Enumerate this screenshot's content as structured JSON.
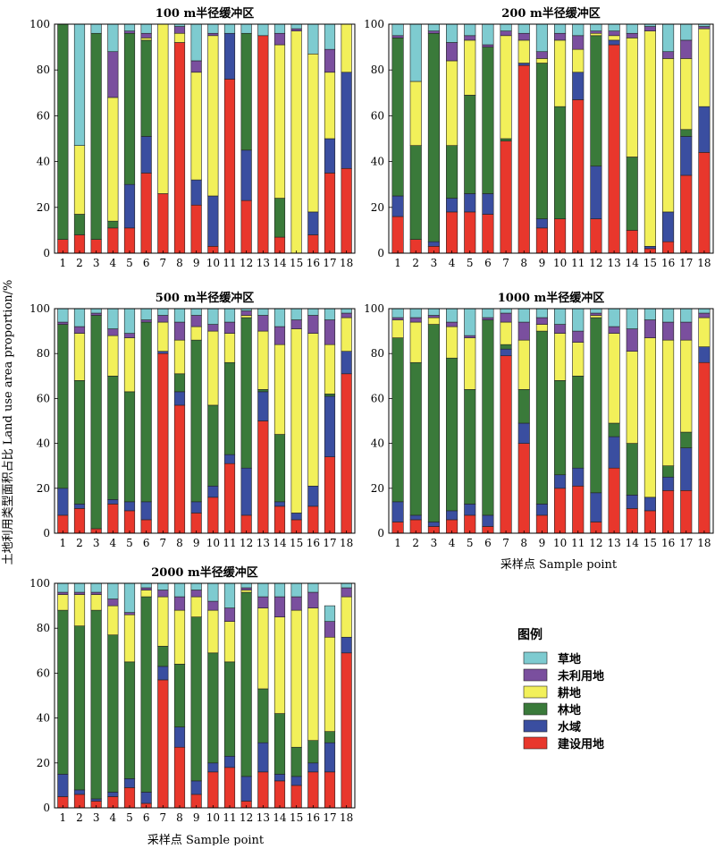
{
  "figure": {
    "ylabel": "土地利用类型面积占比 Land use area proportion/%",
    "xlabel": "采样点 Sample point",
    "legend_title": "图例",
    "colors": {
      "草地": "#7ecbd0",
      "未利用地": "#7a4f9e",
      "耕地": "#f2f05a",
      "林地": "#3a7a3a",
      "水域": "#3a4ea0",
      "建设用地": "#e8372c"
    }
  },
  "chart_data": [
    {
      "type": "bar",
      "stacked": true,
      "title": "100 m半径缓冲区",
      "categories": [
        "1",
        "2",
        "3",
        "4",
        "5",
        "6",
        "7",
        "8",
        "9",
        "10",
        "11",
        "12",
        "13",
        "14",
        "15",
        "16",
        "17",
        "18"
      ],
      "ylim": [
        0,
        100
      ],
      "yticks": [
        0,
        20,
        40,
        60,
        80,
        100
      ],
      "series": [
        {
          "name": "建设用地",
          "values": [
            6,
            8,
            6,
            11,
            11,
            35,
            26,
            92,
            21,
            3,
            76,
            23,
            95,
            7,
            0,
            8,
            35,
            37
          ]
        },
        {
          "name": "水域",
          "values": [
            0,
            0,
            0,
            0,
            19,
            16,
            0,
            0,
            11,
            22,
            20,
            22,
            0,
            0,
            0,
            10,
            15,
            42
          ]
        },
        {
          "name": "林地",
          "values": [
            94,
            9,
            90,
            3,
            66,
            42,
            0,
            0,
            0,
            0,
            0,
            51,
            0,
            17,
            0,
            0,
            0,
            0
          ]
        },
        {
          "name": "耕地",
          "values": [
            0,
            30,
            0,
            54,
            0,
            1,
            74,
            4,
            47,
            70,
            0,
            0,
            0,
            67,
            97,
            69,
            29,
            21
          ]
        },
        {
          "name": "未利用地",
          "values": [
            0,
            0,
            0,
            20,
            1,
            2,
            0,
            3,
            5,
            1,
            0,
            0,
            0,
            5,
            1,
            0,
            10,
            0
          ]
        },
        {
          "name": "草地",
          "values": [
            0,
            53,
            4,
            12,
            3,
            4,
            0,
            1,
            16,
            4,
            4,
            4,
            5,
            4,
            2,
            13,
            11,
            0
          ]
        }
      ]
    },
    {
      "type": "bar",
      "stacked": true,
      "title": "200 m半径缓冲区",
      "categories": [
        "1",
        "2",
        "3",
        "4",
        "5",
        "6",
        "7",
        "8",
        "9",
        "10",
        "11",
        "12",
        "13",
        "14",
        "15",
        "16",
        "17",
        "18"
      ],
      "ylim": [
        0,
        100
      ],
      "yticks": [
        0,
        20,
        40,
        60,
        80,
        100
      ],
      "series": [
        {
          "name": "建设用地",
          "values": [
            16,
            6,
            3,
            18,
            18,
            17,
            49,
            82,
            11,
            15,
            67,
            15,
            91,
            10,
            2,
            5,
            34,
            44
          ]
        },
        {
          "name": "水域",
          "values": [
            9,
            0,
            2,
            6,
            8,
            9,
            0,
            1,
            4,
            0,
            12,
            23,
            2,
            0,
            1,
            13,
            17,
            20
          ]
        },
        {
          "name": "林地",
          "values": [
            69,
            41,
            91,
            23,
            43,
            64,
            1,
            0,
            68,
            49,
            0,
            57,
            0,
            32,
            0,
            0,
            3,
            0
          ]
        },
        {
          "name": "耕地",
          "values": [
            0,
            28,
            0,
            37,
            24,
            0,
            45,
            10,
            2,
            29,
            10,
            1,
            2,
            52,
            94,
            67,
            31,
            34
          ]
        },
        {
          "name": "未利用地",
          "values": [
            1,
            0,
            1,
            8,
            2,
            1,
            2,
            3,
            3,
            3,
            6,
            1,
            2,
            2,
            2,
            3,
            8,
            1
          ]
        },
        {
          "name": "草地",
          "values": [
            5,
            25,
            3,
            8,
            5,
            9,
            3,
            4,
            12,
            4,
            5,
            3,
            3,
            4,
            1,
            12,
            7,
            1
          ]
        }
      ]
    },
    {
      "type": "bar",
      "stacked": true,
      "title": "500 m半径缓冲区",
      "categories": [
        "1",
        "2",
        "3",
        "4",
        "5",
        "6",
        "7",
        "8",
        "9",
        "10",
        "11",
        "12",
        "13",
        "14",
        "15",
        "16",
        "17",
        "18"
      ],
      "ylim": [
        0,
        100
      ],
      "yticks": [
        0,
        20,
        40,
        60,
        80,
        100
      ],
      "series": [
        {
          "name": "建设用地",
          "values": [
            8,
            11,
            2,
            13,
            10,
            6,
            80,
            57,
            9,
            16,
            31,
            8,
            50,
            12,
            6,
            12,
            34,
            71
          ]
        },
        {
          "name": "水域",
          "values": [
            12,
            2,
            0,
            2,
            4,
            8,
            1,
            6,
            5,
            5,
            4,
            21,
            13,
            2,
            3,
            9,
            27,
            10
          ]
        },
        {
          "name": "林地",
          "values": [
            73,
            55,
            95,
            55,
            49,
            80,
            0,
            8,
            72,
            36,
            41,
            67,
            1,
            30,
            0,
            0,
            1,
            0
          ]
        },
        {
          "name": "耕地",
          "values": [
            0,
            21,
            0,
            18,
            24,
            0,
            13,
            15,
            6,
            33,
            13,
            1,
            26,
            40,
            82,
            68,
            22,
            15
          ]
        },
        {
          "name": "未利用地",
          "values": [
            1,
            3,
            1,
            3,
            2,
            1,
            3,
            8,
            5,
            3,
            5,
            2,
            7,
            8,
            4,
            8,
            11,
            2
          ]
        },
        {
          "name": "草地",
          "values": [
            6,
            8,
            2,
            9,
            11,
            5,
            3,
            6,
            3,
            7,
            6,
            1,
            3,
            8,
            5,
            3,
            5,
            2
          ]
        }
      ]
    },
    {
      "type": "bar",
      "stacked": true,
      "title": "1000 m半径缓冲区",
      "categories": [
        "1",
        "2",
        "3",
        "4",
        "5",
        "6",
        "7",
        "8",
        "9",
        "10",
        "11",
        "12",
        "13",
        "14",
        "15",
        "16",
        "17",
        "18"
      ],
      "ylim": [
        0,
        100
      ],
      "yticks": [
        0,
        20,
        40,
        60,
        80,
        100
      ],
      "series": [
        {
          "name": "建设用地",
          "values": [
            5,
            6,
            3,
            6,
            8,
            3,
            79,
            40,
            8,
            20,
            21,
            5,
            29,
            11,
            10,
            19,
            19,
            76
          ]
        },
        {
          "name": "水域",
          "values": [
            9,
            2,
            2,
            4,
            5,
            5,
            3,
            9,
            5,
            6,
            8,
            13,
            14,
            6,
            6,
            6,
            19,
            7
          ]
        },
        {
          "name": "林地",
          "values": [
            73,
            68,
            88,
            68,
            51,
            87,
            2,
            15,
            77,
            42,
            41,
            78,
            6,
            23,
            0,
            5,
            7,
            0
          ]
        },
        {
          "name": "耕地",
          "values": [
            8,
            18,
            3,
            14,
            23,
            0,
            10,
            22,
            3,
            21,
            15,
            1,
            40,
            41,
            71,
            56,
            41,
            13
          ]
        },
        {
          "name": "未利用地",
          "values": [
            1,
            2,
            1,
            2,
            1,
            1,
            4,
            8,
            3,
            4,
            5,
            1,
            3,
            10,
            8,
            8,
            8,
            2
          ]
        },
        {
          "name": "草地",
          "values": [
            4,
            4,
            3,
            6,
            12,
            4,
            2,
            6,
            4,
            7,
            10,
            2,
            8,
            9,
            5,
            6,
            6,
            2
          ]
        }
      ]
    },
    {
      "type": "bar",
      "stacked": true,
      "title": "2000 m半径缓冲区",
      "categories": [
        "1",
        "2",
        "3",
        "4",
        "5",
        "6",
        "7",
        "8",
        "9",
        "10",
        "11",
        "12",
        "13",
        "14",
        "15",
        "16",
        "17",
        "18"
      ],
      "ylim": [
        0,
        100
      ],
      "yticks": [
        0,
        20,
        40,
        60,
        80,
        100
      ],
      "series": [
        {
          "name": "建设用地",
          "values": [
            5,
            6,
            3,
            5,
            9,
            2,
            57,
            27,
            6,
            16,
            18,
            3,
            16,
            12,
            10,
            16,
            16,
            69
          ]
        },
        {
          "name": "水域",
          "values": [
            10,
            2,
            1,
            2,
            4,
            5,
            6,
            9,
            6,
            4,
            5,
            11,
            13,
            3,
            4,
            4,
            13,
            7
          ]
        },
        {
          "name": "林地",
          "values": [
            73,
            73,
            84,
            70,
            52,
            87,
            9,
            28,
            73,
            49,
            42,
            82,
            24,
            27,
            13,
            10,
            5,
            0
          ]
        },
        {
          "name": "耕地",
          "values": [
            7,
            14,
            7,
            13,
            21,
            3,
            22,
            24,
            9,
            19,
            18,
            1,
            36,
            43,
            61,
            59,
            42,
            18
          ]
        },
        {
          "name": "未利用地",
          "values": [
            1,
            1,
            1,
            3,
            1,
            1,
            3,
            6,
            3,
            4,
            6,
            1,
            5,
            9,
            6,
            7,
            7,
            4
          ]
        },
        {
          "name": "草地",
          "values": [
            4,
            4,
            4,
            7,
            13,
            2,
            3,
            6,
            3,
            8,
            11,
            2,
            6,
            6,
            6,
            4,
            7,
            2
          ]
        }
      ]
    }
  ]
}
